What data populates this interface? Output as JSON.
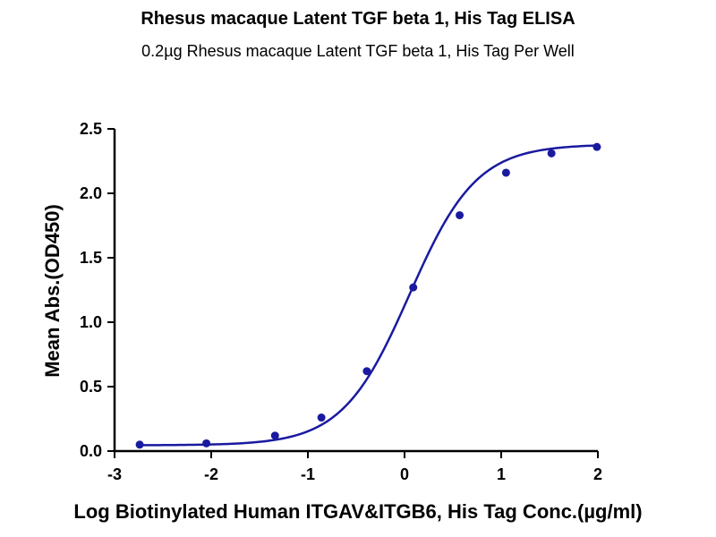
{
  "chart_data": {
    "type": "scatter",
    "title": "Rhesus macaque Latent TGF beta 1, His Tag ELISA",
    "subtitle": "0.2µg Rhesus macaque Latent TGF beta 1, His Tag Per Well",
    "xlabel": "Log Biotinylated Human ITGAV&ITGB6, His Tag Conc.(µg/ml)",
    "ylabel": "Mean Abs.(OD450)",
    "xlim": [
      -3,
      2
    ],
    "ylim": [
      0,
      2.5
    ],
    "xticks": [
      -3,
      -2,
      -1,
      0,
      1,
      2
    ],
    "yticks": [
      0.0,
      0.5,
      1.0,
      1.5,
      2.0,
      2.5
    ],
    "ytick_labels": [
      "0.0",
      "0.5",
      "1.0",
      "1.5",
      "2.0",
      "2.5"
    ],
    "grid": false,
    "series_color": "#1a1aa0",
    "points": [
      {
        "x": -2.74,
        "y": 0.05
      },
      {
        "x": -2.05,
        "y": 0.06
      },
      {
        "x": -1.34,
        "y": 0.12
      },
      {
        "x": -0.86,
        "y": 0.26
      },
      {
        "x": -0.39,
        "y": 0.62
      },
      {
        "x": 0.09,
        "y": 1.27
      },
      {
        "x": 0.57,
        "y": 1.83
      },
      {
        "x": 1.05,
        "y": 2.16
      },
      {
        "x": 1.52,
        "y": 2.31
      },
      {
        "x": 1.99,
        "y": 2.36
      }
    ],
    "fit": {
      "model": "4PL",
      "bottom": 0.045,
      "top": 2.38,
      "log_ec50": 0.05,
      "hill": 1.25
    }
  }
}
